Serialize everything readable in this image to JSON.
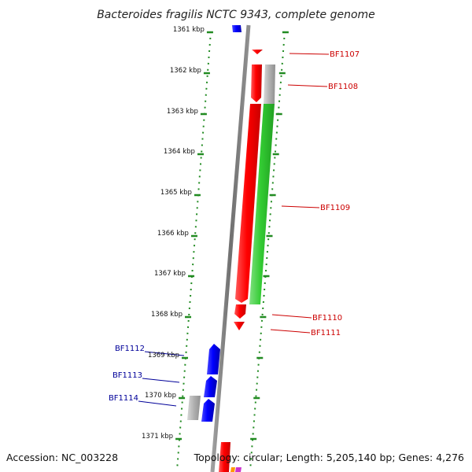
{
  "title": "Bacteroides fragilis NCTC 9343, complete genome",
  "accession": "Accession: NC_003228",
  "topology": "Topology: circular; Length: 5,205,140 bp; Genes: 4,276",
  "kbp_ticks": [
    "1361 kbp",
    "1362 kbp",
    "1363 kbp",
    "1364 kbp",
    "1365 kbp",
    "1366 kbp",
    "1367 kbp",
    "1368 kbp",
    "1369 kbp",
    "1370 kbp",
    "1371 kbp"
  ],
  "genes_right": [
    "BF1107",
    "BF1108",
    "BF1109",
    "BF1110",
    "BF1111"
  ],
  "genes_left": [
    "BF1112",
    "BF1113",
    "BF1114"
  ],
  "colors": {
    "cds_forward": "#ff0000",
    "cds_reverse": "#0000ff",
    "rna": "#33cc33",
    "pseudo": "#b0b0b0",
    "right_label": "#cc0000",
    "left_label": "#000099",
    "ruler": "#228b22",
    "axis": "#808080"
  }
}
